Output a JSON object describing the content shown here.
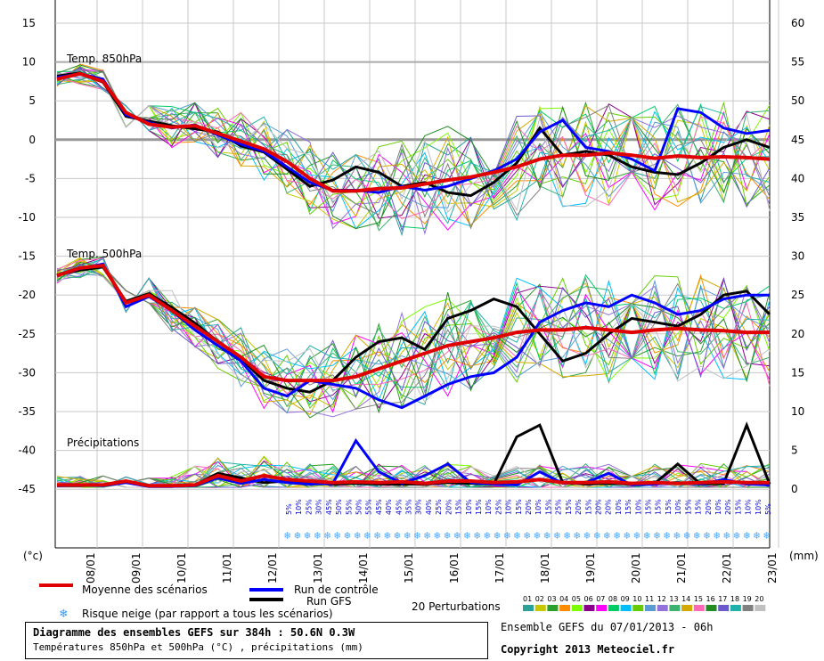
{
  "chart_data": {
    "type": "line",
    "title": "Diagramme des ensembles GEFS sur 384h : 50.6N 0.3W",
    "subtitle": "Températures 850hPa et 500hPa (°C) , précipitations (mm)",
    "left_axis_label": "(°c)",
    "right_axis_label": "(mm)",
    "left_ticks": [
      15,
      10,
      5,
      0,
      -5,
      -10,
      -15,
      -20,
      -25,
      -30,
      -35,
      -40,
      -45
    ],
    "right_ticks": [
      60,
      55,
      50,
      45,
      40,
      35,
      30,
      25,
      20,
      15,
      10,
      5,
      0
    ],
    "x_labels": [
      "08/01",
      "09/01",
      "10/01",
      "11/01",
      "12/01",
      "13/01",
      "14/01",
      "15/01",
      "16/01",
      "17/01",
      "18/01",
      "19/01",
      "20/01",
      "21/01",
      "22/01",
      "23/01"
    ],
    "grid": true,
    "panels": [
      {
        "name": "Temp. 850hPa",
        "unit": "°C",
        "x": [
          "07/01 18h",
          "08/01 00h",
          "08/01 12h",
          "09/01 00h",
          "09/01 12h",
          "10/01 00h",
          "10/01 12h",
          "11/01 00h",
          "11/01 12h",
          "12/01 00h",
          "12/01 12h",
          "13/01 00h",
          "13/01 12h",
          "14/01 00h",
          "14/01 12h",
          "15/01 00h",
          "15/01 12h",
          "16/01 00h",
          "16/01 12h",
          "17/01 00h",
          "17/01 12h",
          "18/01 00h",
          "18/01 12h",
          "19/01 00h",
          "19/01 12h",
          "20/01 00h",
          "20/01 12h",
          "21/01 00h",
          "21/01 12h",
          "22/01 00h",
          "22/01 12h",
          "23/01 00h"
        ],
        "series": [
          {
            "name": "Moyenne des scénarios",
            "color": "#e00000",
            "values": [
              7.8,
              8.5,
              7.5,
              3.5,
              2.0,
              1.6,
              1.8,
              0.8,
              -0.2,
              -1.2,
              -2.8,
              -5.0,
              -6.6,
              -6.6,
              -6.3,
              -6.2,
              -5.7,
              -5.2,
              -4.8,
              -4.2,
              -3.5,
              -2.5,
              -2.0,
              -2.0,
              -1.7,
              -2.0,
              -2.4,
              -2.1,
              -2.3,
              -2.2,
              -2.3,
              -2.5
            ]
          },
          {
            "name": "Run de contrôle",
            "color": "#0000ff",
            "values": [
              8.0,
              8.5,
              7.8,
              3.2,
              2.2,
              1.5,
              1.9,
              0.6,
              -0.6,
              -1.5,
              -3.5,
              -5.5,
              -6.5,
              -6.5,
              -6.8,
              -6.0,
              -6.5,
              -6.0,
              -5.0,
              -4.0,
              -2.5,
              1.0,
              2.5,
              -1.0,
              -1.5,
              -2.5,
              -4.0,
              4.0,
              3.5,
              1.5,
              0.8,
              1.2
            ]
          },
          {
            "name": "Run GFS",
            "color": "#000000",
            "values": [
              8.2,
              8.6,
              7.4,
              3.0,
              2.4,
              1.8,
              1.4,
              1.0,
              -0.8,
              -1.6,
              -3.8,
              -6.0,
              -5.2,
              -3.5,
              -4.2,
              -6.0,
              -5.5,
              -6.8,
              -7.2,
              -5.5,
              -3.0,
              1.5,
              -2.0,
              -1.5,
              -2.0,
              -3.5,
              -4.2,
              -4.5,
              -3.0,
              -1.0,
              0.0,
              -1.0
            ]
          }
        ]
      },
      {
        "name": "Temp. 500hPa",
        "unit": "°C",
        "x": [
          "07/01 18h",
          "08/01 00h",
          "08/01 12h",
          "09/01 00h",
          "09/01 12h",
          "10/01 00h",
          "10/01 12h",
          "11/01 00h",
          "11/01 12h",
          "12/01 00h",
          "12/01 12h",
          "13/01 00h",
          "13/01 12h",
          "14/01 00h",
          "14/01 12h",
          "15/01 00h",
          "15/01 12h",
          "16/01 00h",
          "16/01 12h",
          "17/01 00h",
          "17/01 12h",
          "18/01 00h",
          "18/01 12h",
          "19/01 00h",
          "19/01 12h",
          "20/01 00h",
          "20/01 12h",
          "21/01 00h",
          "21/01 12h",
          "22/01 00h",
          "22/01 12h",
          "23/01 00h"
        ],
        "series": [
          {
            "name": "Moyenne des scénarios",
            "color": "#e00000",
            "values": [
              -17.5,
              -16.5,
              -16.2,
              -21.0,
              -20.0,
              -22.0,
              -24.0,
              -26.0,
              -28.0,
              -30.5,
              -31.0,
              -31.0,
              -31.0,
              -30.5,
              -29.5,
              -28.5,
              -27.5,
              -26.5,
              -26.0,
              -25.5,
              -24.8,
              -24.5,
              -24.5,
              -24.2,
              -24.5,
              -24.8,
              -24.5,
              -24.3,
              -24.5,
              -24.6,
              -24.8,
              -24.8
            ]
          },
          {
            "name": "Run de contrôle",
            "color": "#0000ff",
            "values": [
              -17.5,
              -16.6,
              -16.0,
              -21.5,
              -20.2,
              -22.0,
              -24.5,
              -26.5,
              -28.5,
              -32.0,
              -33.0,
              -31.0,
              -31.5,
              -32.0,
              -33.5,
              -34.5,
              -33.0,
              -31.5,
              -30.5,
              -30.0,
              -28.0,
              -23.5,
              -22.0,
              -21.0,
              -21.5,
              -20.0,
              -21.0,
              -22.5,
              -22.0,
              -20.5,
              -20.0,
              -20.0
            ]
          },
          {
            "name": "Run GFS",
            "color": "#000000",
            "values": [
              -17.4,
              -16.8,
              -16.4,
              -20.8,
              -19.8,
              -21.6,
              -23.6,
              -26.0,
              -28.2,
              -31.0,
              -32.0,
              -32.5,
              -31.0,
              -28.0,
              -26.0,
              -25.5,
              -27.0,
              -23.0,
              -22.0,
              -20.5,
              -21.5,
              -25.0,
              -28.5,
              -27.5,
              -25.0,
              -23.0,
              -23.5,
              -24.0,
              -22.5,
              -20.0,
              -19.5,
              -22.5
            ]
          }
        ]
      },
      {
        "name": "Précipitations",
        "unit": "mm",
        "x": [
          "07/01 18h",
          "08/01 00h",
          "08/01 12h",
          "09/01 00h",
          "09/01 12h",
          "10/01 00h",
          "10/01 12h",
          "11/01 00h",
          "11/01 12h",
          "12/01 00h",
          "12/01 12h",
          "13/01 00h",
          "13/01 12h",
          "14/01 00h",
          "14/01 12h",
          "15/01 00h",
          "15/01 12h",
          "16/01 00h",
          "16/01 12h",
          "17/01 00h",
          "17/01 12h",
          "18/01 00h",
          "18/01 12h",
          "19/01 00h",
          "19/01 12h",
          "20/01 00h",
          "20/01 12h",
          "21/01 00h",
          "21/01 12h",
          "22/01 00h",
          "22/01 12h",
          "23/01 00h"
        ],
        "series": [
          {
            "name": "Moyenne des scénarios",
            "color": "#e00000",
            "values": [
              0.3,
              0.3,
              0.3,
              0.8,
              0.2,
              0.2,
              0.3,
              1.5,
              0.8,
              1.5,
              1.0,
              0.8,
              0.6,
              0.7,
              0.6,
              0.7,
              0.5,
              0.8,
              0.8,
              0.6,
              0.7,
              1.0,
              0.6,
              0.6,
              0.7,
              0.5,
              0.6,
              0.5,
              0.6,
              0.7,
              0.6,
              0.6
            ]
          },
          {
            "name": "Run de contrôle",
            "color": "#0000ff",
            "values": [
              0.2,
              0.3,
              0.2,
              0.6,
              0.1,
              0.1,
              0.2,
              1.2,
              0.5,
              1.0,
              0.6,
              0.4,
              0.5,
              6.0,
              2.0,
              0.5,
              1.5,
              3.0,
              0.6,
              0.4,
              0.3,
              2.0,
              0.5,
              0.6,
              1.8,
              0.3,
              0.4,
              0.6,
              0.4,
              1.0,
              0.4,
              0.3
            ]
          },
          {
            "name": "Run GFS",
            "color": "#000000",
            "values": [
              0.2,
              0.2,
              0.3,
              0.7,
              0.1,
              0.1,
              0.3,
              1.8,
              1.2,
              0.6,
              0.8,
              0.5,
              0.4,
              0.5,
              0.4,
              0.4,
              0.4,
              0.6,
              0.5,
              0.4,
              6.5,
              8.0,
              0.6,
              0.4,
              0.5,
              0.4,
              0.5,
              3.0,
              0.4,
              0.5,
              8.0,
              0.4
            ]
          }
        ]
      }
    ],
    "snow_risk": [
      "5%",
      "10%",
      "25%",
      "30%",
      "45%",
      "50%",
      "55%",
      "50%",
      "55%",
      "45%",
      "40%",
      "45%",
      "35%",
      "30%",
      "40%",
      "25%",
      "20%",
      "15%",
      "10%",
      "15%",
      "10%",
      "25%",
      "10%",
      "15%",
      "20%",
      "10%",
      "15%",
      "25%",
      "15%",
      "20%",
      "15%",
      "20%",
      "20%",
      "10%",
      "15%",
      "10%",
      "15%",
      "15%",
      "15%",
      "10%",
      "15%",
      "15%",
      "20%",
      "10%",
      "20%",
      "15%",
      "10%",
      "10%",
      "5%"
    ],
    "legend": {
      "mean": "Moyenne des scénarios",
      "control": "Run de contrôle",
      "gfs": "Run GFS",
      "snow": "Risque neige (par rapport a tous les scénarios)",
      "perturbations": "20 Perturbations",
      "perturbation_numbers": [
        "01",
        "02",
        "03",
        "04",
        "05",
        "06",
        "07",
        "08",
        "09",
        "10",
        "11",
        "12",
        "13",
        "14",
        "15",
        "16",
        "17",
        "18",
        "19",
        "20"
      ],
      "perturbation_colors": [
        "#2aa198",
        "#c8c800",
        "#2ca02c",
        "#ff8c00",
        "#7cfc00",
        "#8b008b",
        "#ff00ff",
        "#00cc66",
        "#00bfff",
        "#66cc00",
        "#5b9bd5",
        "#9370db",
        "#3cb371",
        "#d4aa00",
        "#ff69b4",
        "#228b22",
        "#6a5acd",
        "#20b2aa",
        "#808080",
        "#c0c0c0"
      ]
    },
    "credit": "Ensemble GEFS du 07/01/2013 - 06h",
    "copyright": "Copyright 2013 Meteociel.fr"
  }
}
